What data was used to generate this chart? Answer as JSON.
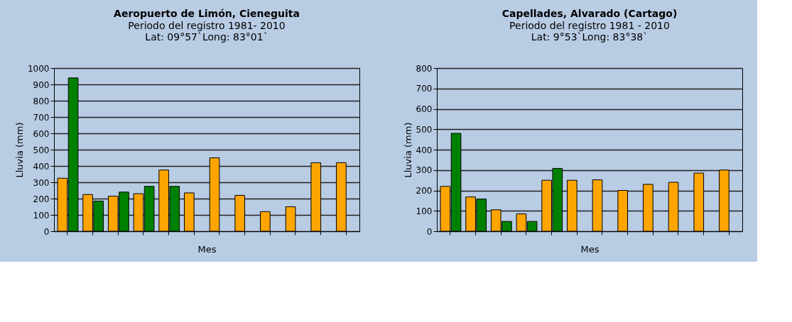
{
  "chart_data": [
    {
      "type": "bar",
      "title": "Aeropuerto de Limón, Cieneguita",
      "subtitle": "Periodo del registro 1981- 2010\nLat: 09°57`Long: 83°01`",
      "xlabel": "Mes",
      "ylabel": "Lluvia (mm)",
      "categories": [
        null,
        null,
        null,
        null,
        null,
        null,
        null,
        null,
        null,
        null,
        null,
        null
      ],
      "series": [
        {
          "color": "#ffa500",
          "values": [
            325,
            225,
            215,
            230,
            375,
            235,
            450,
            220,
            120,
            150,
            420,
            420
          ]
        },
        {
          "color": "#008000",
          "values": [
            940,
            185,
            240,
            275,
            275,
            null,
            null,
            null,
            null,
            null,
            null,
            null
          ]
        }
      ],
      "ylim": [
        0,
        1000
      ],
      "yticks": [
        0,
        100,
        200,
        300,
        400,
        500,
        600,
        700,
        800,
        900,
        1000
      ],
      "grid": "y",
      "legend": false,
      "tick_labels": "y"
    },
    {
      "type": "bar",
      "title": "Capellades, Alvarado (Cartago)",
      "subtitle": "Periodo del registro 1981 - 2010\nLat: 9°53`Long: 83°38`",
      "xlabel": "Mes",
      "ylabel": "Lluvia (mm)",
      "categories": [
        null,
        null,
        null,
        null,
        null,
        null,
        null,
        null,
        null,
        null,
        null,
        null
      ],
      "series": [
        {
          "color": "#ffa500",
          "values": [
            220,
            168,
            105,
            85,
            250,
            250,
            252,
            200,
            230,
            240,
            285,
            300
          ]
        },
        {
          "color": "#008000",
          "values": [
            480,
            158,
            48,
            48,
            308,
            null,
            null,
            null,
            null,
            null,
            null,
            null
          ]
        }
      ],
      "ylim": [
        0,
        800
      ],
      "yticks": [
        0,
        100,
        200,
        300,
        400,
        500,
        600,
        700,
        800
      ],
      "grid": "y",
      "legend": false,
      "tick_labels": "y"
    }
  ]
}
